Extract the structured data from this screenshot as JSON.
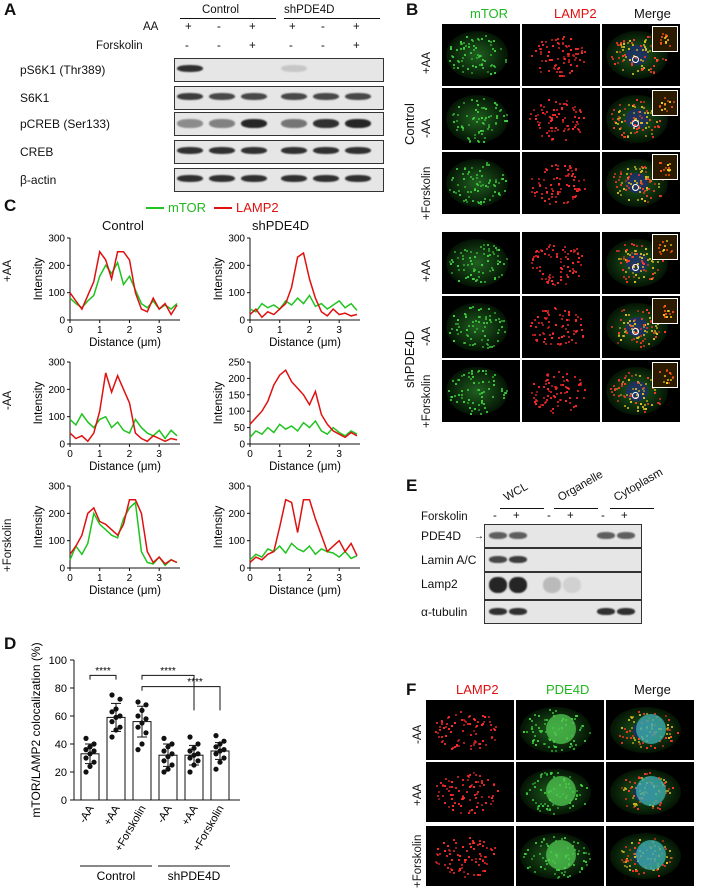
{
  "panels": {
    "A": "A",
    "B": "B",
    "C": "C",
    "D": "D",
    "E": "E",
    "F": "F"
  },
  "panel_a": {
    "groups": [
      "Control",
      "shPDE4D"
    ],
    "conditions": [
      {
        "label": "AA",
        "signs": [
          "+",
          "-",
          "+",
          "+",
          "-",
          "+"
        ]
      },
      {
        "label": "Forskolin",
        "signs": [
          "-",
          "-",
          "+",
          "-",
          "-",
          "+"
        ]
      }
    ],
    "rows": [
      "pS6K1 (Thr389)",
      "S6K1",
      "pCREB (Ser133)",
      "CREB",
      "β-actin"
    ]
  },
  "panel_b": {
    "columns": [
      "mTOR",
      "LAMP2",
      "Merge"
    ],
    "groups": [
      "Control",
      "shPDE4D"
    ],
    "rows": [
      "+AA",
      "-AA",
      "+Forskolin",
      "+AA",
      "-AA",
      "+Forskolin"
    ]
  },
  "panel_c": {
    "legend": [
      "mTOR",
      "LAMP2"
    ],
    "col_titles": [
      "Control",
      "shPDE4D"
    ],
    "row_labels": [
      "+AA",
      "-AA",
      "+Forskolin"
    ],
    "ylabel": "Intensity",
    "xlabel": "Distance (μm)"
  },
  "panel_d": {
    "ylabel": "mTOR/LAMP2 colocalization (%)",
    "groups": [
      "Control",
      "shPDE4D"
    ],
    "sig": [
      "****",
      "****",
      "****"
    ]
  },
  "panel_e": {
    "fractions": [
      "WCL",
      "Organelle",
      "Cytoplasm"
    ],
    "forskolin_label": "Forskolin",
    "signs": [
      "-",
      "+",
      "-",
      "+",
      "-",
      "+"
    ],
    "rows": [
      "PDE4D",
      "Lamin A/C",
      "Lamp2",
      "α-tubulin"
    ]
  },
  "panel_f": {
    "columns": [
      "LAMP2",
      "PDE4D",
      "Merge"
    ],
    "rows": [
      "-AA",
      "+AA",
      "+Forskolin"
    ]
  },
  "colors": {
    "mtor": "#1fc41f",
    "lamp2": "#e01010"
  },
  "chart_data": [
    {
      "type": "line",
      "title": "Control +AA",
      "xlabel": "Distance (μm)",
      "ylabel": "Intensity",
      "xlim": [
        0,
        3.7
      ],
      "ylim": [
        0,
        300
      ],
      "x": [
        0,
        0.2,
        0.4,
        0.6,
        0.8,
        1.0,
        1.2,
        1.4,
        1.6,
        1.8,
        2.0,
        2.2,
        2.4,
        2.6,
        2.8,
        3.0,
        3.2,
        3.4,
        3.6
      ],
      "series": [
        {
          "name": "mTOR",
          "values": [
            80,
            60,
            45,
            70,
            90,
            160,
            200,
            170,
            210,
            130,
            160,
            110,
            60,
            45,
            70,
            40,
            55,
            40,
            60
          ]
        },
        {
          "name": "LAMP2",
          "values": [
            100,
            70,
            40,
            90,
            140,
            250,
            220,
            150,
            250,
            250,
            220,
            100,
            40,
            30,
            80,
            40,
            60,
            20,
            55
          ]
        }
      ]
    },
    {
      "type": "line",
      "title": "shPDE4D +AA",
      "xlabel": "Distance (μm)",
      "ylabel": "Intensity",
      "xlim": [
        0,
        3.7
      ],
      "ylim": [
        0,
        300
      ],
      "x": [
        0,
        0.2,
        0.4,
        0.6,
        0.8,
        1.0,
        1.2,
        1.4,
        1.6,
        1.8,
        2.0,
        2.2,
        2.4,
        2.6,
        2.8,
        3.0,
        3.2,
        3.4,
        3.6
      ],
      "series": [
        {
          "name": "mTOR",
          "values": [
            40,
            30,
            60,
            45,
            55,
            40,
            70,
            55,
            80,
            60,
            90,
            50,
            60,
            40,
            55,
            70,
            45,
            60,
            35
          ]
        },
        {
          "name": "LAMP2",
          "values": [
            20,
            40,
            10,
            30,
            20,
            40,
            60,
            120,
            230,
            245,
            150,
            80,
            30,
            15,
            40,
            20,
            25,
            15,
            20
          ]
        }
      ]
    },
    {
      "type": "line",
      "title": "Control -AA",
      "xlabel": "Distance (μm)",
      "ylabel": "Intensity",
      "xlim": [
        0,
        3.7
      ],
      "ylim": [
        0,
        300
      ],
      "x": [
        0,
        0.2,
        0.4,
        0.6,
        0.8,
        1.0,
        1.2,
        1.4,
        1.6,
        1.8,
        2.0,
        2.2,
        2.4,
        2.6,
        2.8,
        3.0,
        3.2,
        3.4,
        3.6
      ],
      "series": [
        {
          "name": "mTOR",
          "values": [
            90,
            70,
            110,
            80,
            60,
            90,
            100,
            60,
            80,
            50,
            40,
            90,
            60,
            40,
            30,
            50,
            20,
            50,
            30
          ]
        },
        {
          "name": "LAMP2",
          "values": [
            40,
            20,
            30,
            10,
            40,
            120,
            260,
            190,
            250,
            200,
            150,
            40,
            20,
            10,
            30,
            20,
            10,
            20,
            15
          ]
        }
      ]
    },
    {
      "type": "line",
      "title": "shPDE4D -AA",
      "xlabel": "Distance (μm)",
      "ylabel": "Intensity",
      "xlim": [
        0,
        3.7
      ],
      "ylim": [
        0,
        250
      ],
      "x": [
        0,
        0.2,
        0.4,
        0.6,
        0.8,
        1.0,
        1.2,
        1.4,
        1.6,
        1.8,
        2.0,
        2.2,
        2.4,
        2.6,
        2.8,
        3.0,
        3.2,
        3.4,
        3.6
      ],
      "series": [
        {
          "name": "mTOR",
          "values": [
            20,
            40,
            30,
            50,
            35,
            60,
            45,
            55,
            40,
            65,
            50,
            70,
            40,
            30,
            50,
            35,
            25,
            40,
            30
          ]
        },
        {
          "name": "LAMP2",
          "values": [
            60,
            80,
            100,
            130,
            180,
            210,
            225,
            190,
            170,
            150,
            120,
            160,
            90,
            60,
            40,
            30,
            20,
            35,
            25
          ]
        }
      ]
    },
    {
      "type": "line",
      "title": "Control +Forskolin",
      "xlabel": "Distance (μm)",
      "ylabel": "Intensity",
      "xlim": [
        0,
        3.7
      ],
      "ylim": [
        0,
        300
      ],
      "x": [
        0,
        0.2,
        0.4,
        0.6,
        0.8,
        1.0,
        1.2,
        1.4,
        1.6,
        1.8,
        2.0,
        2.2,
        2.4,
        2.6,
        2.8,
        3.0,
        3.2,
        3.4,
        3.6
      ],
      "series": [
        {
          "name": "mTOR",
          "values": [
            30,
            80,
            50,
            90,
            200,
            160,
            140,
            120,
            110,
            180,
            220,
            240,
            60,
            20,
            15,
            40,
            10,
            30,
            20
          ]
        },
        {
          "name": "LAMP2",
          "values": [
            50,
            80,
            120,
            200,
            220,
            170,
            160,
            140,
            120,
            160,
            250,
            250,
            200,
            60,
            20,
            40,
            15,
            30,
            20
          ]
        }
      ]
    },
    {
      "type": "line",
      "title": "shPDE4D +Forskolin",
      "xlabel": "Distance (μm)",
      "ylabel": "Intensity",
      "xlim": [
        0,
        3.7
      ],
      "ylim": [
        0,
        300
      ],
      "x": [
        0,
        0.2,
        0.4,
        0.6,
        0.8,
        1.0,
        1.2,
        1.4,
        1.6,
        1.8,
        2.0,
        2.2,
        2.4,
        2.6,
        2.8,
        3.0,
        3.2,
        3.4,
        3.6
      ],
      "series": [
        {
          "name": "mTOR",
          "values": [
            30,
            50,
            40,
            70,
            60,
            80,
            55,
            90,
            70,
            60,
            80,
            50,
            70,
            60,
            55,
            40,
            60,
            35,
            45
          ]
        },
        {
          "name": "LAMP2",
          "values": [
            20,
            40,
            30,
            50,
            60,
            150,
            250,
            240,
            130,
            250,
            250,
            180,
            120,
            60,
            80,
            100,
            60,
            90,
            45
          ]
        }
      ]
    },
    {
      "type": "bar",
      "title": "",
      "categories": [
        "-AA",
        "+AA",
        "+Forskolin",
        "-AA",
        "+AA",
        "+Forskolin"
      ],
      "values": [
        33,
        59,
        56,
        32,
        32,
        35
      ],
      "errors": [
        7,
        10,
        11,
        8,
        7,
        6
      ],
      "points": [
        [
          20,
          24,
          27,
          30,
          33,
          35,
          36,
          38,
          40,
          44
        ],
        [
          45,
          50,
          52,
          56,
          59,
          60,
          63,
          65,
          72,
          75
        ],
        [
          36,
          40,
          48,
          52,
          55,
          58,
          60,
          64,
          68,
          70
        ],
        [
          20,
          22,
          25,
          28,
          31,
          33,
          35,
          38,
          40,
          44
        ],
        [
          20,
          25,
          28,
          30,
          32,
          33,
          35,
          37,
          40,
          45
        ],
        [
          22,
          27,
          30,
          33,
          35,
          36,
          38,
          40,
          42,
          46
        ]
      ],
      "ylabel": "mTOR/LAMP2 colocalization (%)",
      "ylim": [
        0,
        100
      ],
      "yticks": [
        0,
        20,
        40,
        60,
        80,
        100
      ]
    }
  ]
}
